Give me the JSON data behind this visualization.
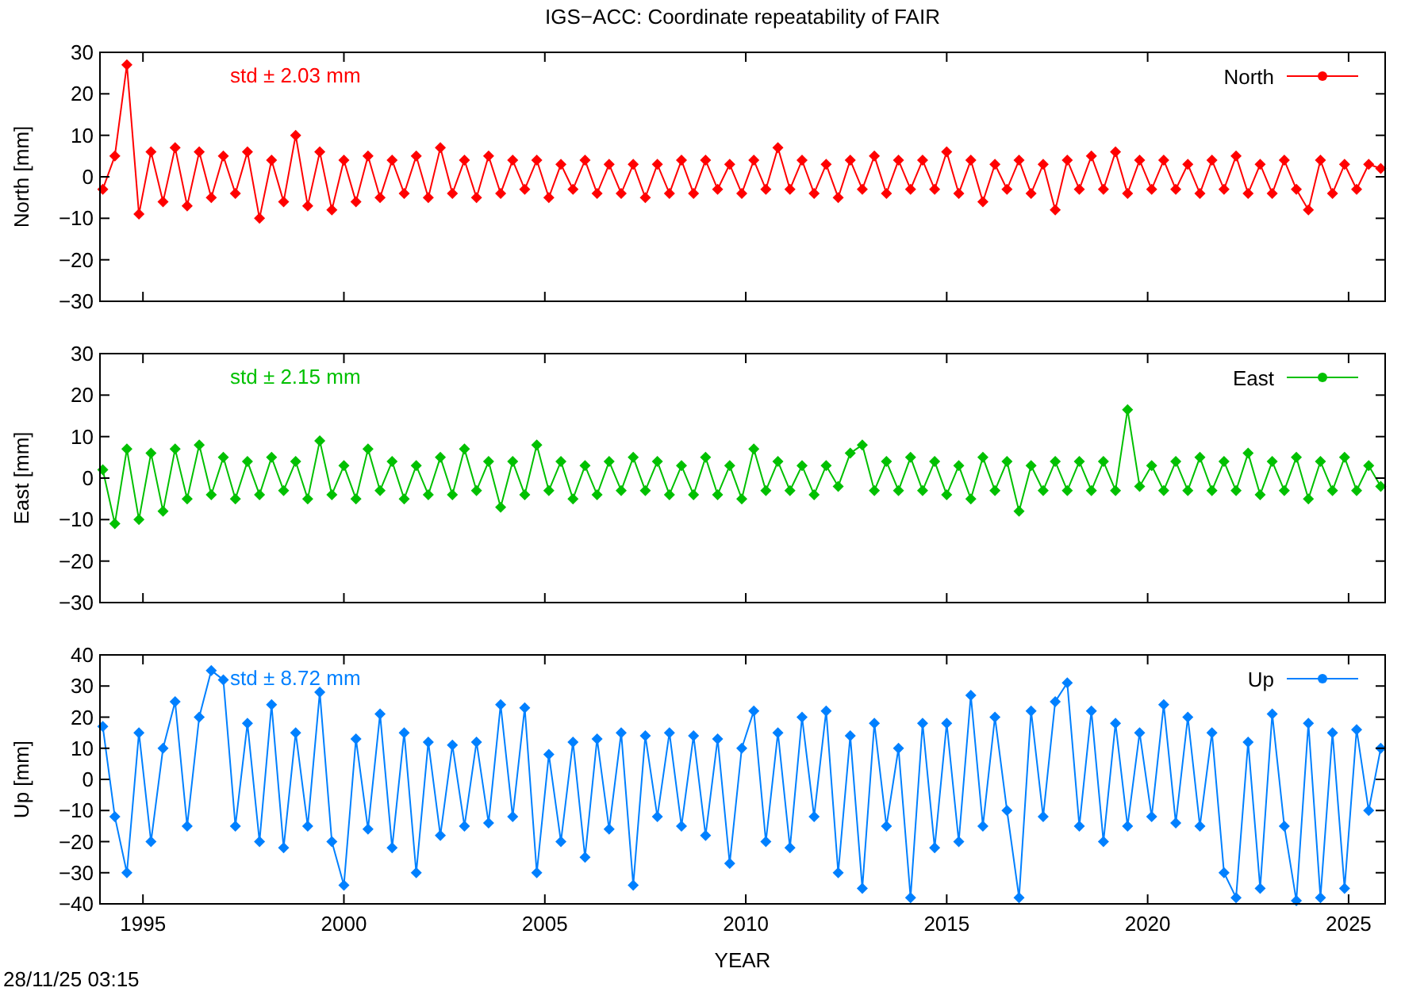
{
  "chart_data": [
    {
      "type": "line",
      "title": "IGS−ACC: Coordinate repeatability of FAIR",
      "ylabel": "North [mm]",
      "annotations": [
        "std ± 2.03 mm"
      ],
      "marker": "diamond",
      "legend": "top right",
      "tick_labels": "y",
      "grid": false,
      "xlim": [
        1993.93,
        2025.91
      ],
      "xticks": [
        1995,
        2000,
        2005,
        2010,
        2015,
        2020,
        2025
      ],
      "ylim": [
        -30,
        30
      ],
      "yticks": [
        -30,
        -20,
        -10,
        0,
        10,
        20,
        30
      ],
      "x": [
        1994.0,
        1994.3,
        1994.6,
        1994.9,
        1995.2,
        1995.5,
        1995.8,
        1996.1,
        1996.4,
        1996.7,
        1997.0,
        1997.3,
        1997.6,
        1997.9,
        1998.2,
        1998.5,
        1998.8,
        1999.1,
        1999.4,
        1999.7,
        2000.0,
        2000.3,
        2000.6,
        2000.9,
        2001.2,
        2001.5,
        2001.8,
        2002.1,
        2002.4,
        2002.7,
        2003.0,
        2003.3,
        2003.6,
        2003.9,
        2004.2,
        2004.5,
        2004.8,
        2005.1,
        2005.4,
        2005.7,
        2006.0,
        2006.3,
        2006.6,
        2006.9,
        2007.2,
        2007.5,
        2007.8,
        2008.1,
        2008.4,
        2008.7,
        2009.0,
        2009.3,
        2009.6,
        2009.9,
        2010.2,
        2010.5,
        2010.8,
        2011.1,
        2011.4,
        2011.7,
        2012.0,
        2012.3,
        2012.6,
        2012.9,
        2013.2,
        2013.5,
        2013.8,
        2014.1,
        2014.4,
        2014.7,
        2015.0,
        2015.3,
        2015.6,
        2015.9,
        2016.2,
        2016.5,
        2016.8,
        2017.1,
        2017.4,
        2017.7,
        2018.0,
        2018.3,
        2018.6,
        2018.9,
        2019.2,
        2019.5,
        2019.8,
        2020.1,
        2020.4,
        2020.7,
        2021.0,
        2021.3,
        2021.6,
        2021.9,
        2022.2,
        2022.5,
        2022.8,
        2023.1,
        2023.4,
        2023.7,
        2024.0,
        2024.3,
        2024.6,
        2024.9,
        2025.2,
        2025.5,
        2025.8
      ],
      "series": [
        {
          "name": "North",
          "color": "#ff0000",
          "values": [
            -3,
            5,
            27,
            -9,
            6,
            -6,
            7,
            -7,
            6,
            -5,
            5,
            -4,
            6,
            -10,
            4,
            -6,
            10,
            -7,
            6,
            -8,
            4,
            -6,
            5,
            -5,
            4,
            -4,
            5,
            -5,
            7,
            -4,
            4,
            -5,
            5,
            -4,
            4,
            -3,
            4,
            -5,
            3,
            -3,
            4,
            -4,
            3,
            -4,
            3,
            -5,
            3,
            -4,
            4,
            -4,
            4,
            -3,
            3,
            -4,
            4,
            -3,
            7,
            -3,
            4,
            -4,
            3,
            -5,
            4,
            -3,
            5,
            -4,
            4,
            -3,
            4,
            -3,
            6,
            -4,
            4,
            -6,
            3,
            -3,
            4,
            -4,
            3,
            -8,
            4,
            -3,
            5,
            -3,
            6,
            -4,
            4,
            -3,
            4,
            -3,
            3,
            -4,
            4,
            -3,
            5,
            -4,
            3,
            -4,
            4,
            -3,
            -8,
            4,
            -4,
            3,
            -3,
            3,
            2
          ]
        }
      ]
    },
    {
      "type": "line",
      "ylabel": "East [mm]",
      "annotations": [
        "std ± 2.15 mm"
      ],
      "marker": "diamond",
      "legend": "top right",
      "tick_labels": "y",
      "grid": false,
      "xlim": [
        1993.93,
        2025.91
      ],
      "xticks": [
        1995,
        2000,
        2005,
        2010,
        2015,
        2020,
        2025
      ],
      "ylim": [
        -30,
        30
      ],
      "yticks": [
        -30,
        -20,
        -10,
        0,
        10,
        20,
        30
      ],
      "x": [
        1994.0,
        1994.3,
        1994.6,
        1994.9,
        1995.2,
        1995.5,
        1995.8,
        1996.1,
        1996.4,
        1996.7,
        1997.0,
        1997.3,
        1997.6,
        1997.9,
        1998.2,
        1998.5,
        1998.8,
        1999.1,
        1999.4,
        1999.7,
        2000.0,
        2000.3,
        2000.6,
        2000.9,
        2001.2,
        2001.5,
        2001.8,
        2002.1,
        2002.4,
        2002.7,
        2003.0,
        2003.3,
        2003.6,
        2003.9,
        2004.2,
        2004.5,
        2004.8,
        2005.1,
        2005.4,
        2005.7,
        2006.0,
        2006.3,
        2006.6,
        2006.9,
        2007.2,
        2007.5,
        2007.8,
        2008.1,
        2008.4,
        2008.7,
        2009.0,
        2009.3,
        2009.6,
        2009.9,
        2010.2,
        2010.5,
        2010.8,
        2011.1,
        2011.4,
        2011.7,
        2012.0,
        2012.3,
        2012.6,
        2012.9,
        2013.2,
        2013.5,
        2013.8,
        2014.1,
        2014.4,
        2014.7,
        2015.0,
        2015.3,
        2015.6,
        2015.9,
        2016.2,
        2016.5,
        2016.8,
        2017.1,
        2017.4,
        2017.7,
        2018.0,
        2018.3,
        2018.6,
        2018.9,
        2019.2,
        2019.5,
        2019.8,
        2020.1,
        2020.4,
        2020.7,
        2021.0,
        2021.3,
        2021.6,
        2021.9,
        2022.2,
        2022.5,
        2022.8,
        2023.1,
        2023.4,
        2023.7,
        2024.0,
        2024.3,
        2024.6,
        2024.9,
        2025.2,
        2025.5,
        2025.8
      ],
      "series": [
        {
          "name": "East",
          "color": "#00c000",
          "values": [
            2,
            -11,
            7,
            -10,
            6,
            -8,
            7,
            -5,
            8,
            -4,
            5,
            -5,
            4,
            -4,
            5,
            -3,
            4,
            -5,
            9,
            -4,
            3,
            -5,
            7,
            -3,
            4,
            -5,
            3,
            -4,
            5,
            -4,
            7,
            -3,
            4,
            -7,
            4,
            -4,
            8,
            -3,
            4,
            -5,
            3,
            -4,
            4,
            -3,
            5,
            -3,
            4,
            -4,
            3,
            -4,
            5,
            -4,
            3,
            -5,
            7,
            -3,
            4,
            -3,
            3,
            -4,
            3,
            -2,
            6,
            8,
            -3,
            4,
            -3,
            5,
            -3,
            4,
            -4,
            3,
            -5,
            5,
            -3,
            4,
            -8,
            3,
            -3,
            4,
            -3,
            4,
            -3,
            4,
            -3,
            16.5,
            -2,
            3,
            -3,
            4,
            -3,
            5,
            -3,
            4,
            -3,
            6,
            -4,
            4,
            -3,
            5,
            -5,
            4,
            -3,
            5,
            -3,
            3,
            -2
          ]
        }
      ]
    },
    {
      "type": "line",
      "xlabel": "YEAR",
      "ylabel": "Up [mm]",
      "annotations": [
        "std ± 8.72 mm",
        "28/11/25 03:15"
      ],
      "marker": "diamond",
      "legend": "top right",
      "grid": false,
      "xlim": [
        1993.93,
        2025.91
      ],
      "xticks": [
        1995,
        2000,
        2005,
        2010,
        2015,
        2020,
        2025
      ],
      "ylim": [
        -40,
        40
      ],
      "yticks": [
        -40,
        -30,
        -20,
        -10,
        0,
        10,
        20,
        30,
        40
      ],
      "x": [
        1994.0,
        1994.3,
        1994.6,
        1994.9,
        1995.2,
        1995.5,
        1995.8,
        1996.1,
        1996.4,
        1996.7,
        1997.0,
        1997.3,
        1997.6,
        1997.9,
        1998.2,
        1998.5,
        1998.8,
        1999.1,
        1999.4,
        1999.7,
        2000.0,
        2000.3,
        2000.6,
        2000.9,
        2001.2,
        2001.5,
        2001.8,
        2002.1,
        2002.4,
        2002.7,
        2003.0,
        2003.3,
        2003.6,
        2003.9,
        2004.2,
        2004.5,
        2004.8,
        2005.1,
        2005.4,
        2005.7,
        2006.0,
        2006.3,
        2006.6,
        2006.9,
        2007.2,
        2007.5,
        2007.8,
        2008.1,
        2008.4,
        2008.7,
        2009.0,
        2009.3,
        2009.6,
        2009.9,
        2010.2,
        2010.5,
        2010.8,
        2011.1,
        2011.4,
        2011.7,
        2012.0,
        2012.3,
        2012.6,
        2012.9,
        2013.2,
        2013.5,
        2013.8,
        2014.1,
        2014.4,
        2014.7,
        2015.0,
        2015.3,
        2015.6,
        2015.9,
        2016.2,
        2016.5,
        2016.8,
        2017.1,
        2017.4,
        2017.7,
        2018.0,
        2018.3,
        2018.6,
        2018.9,
        2019.2,
        2019.5,
        2019.8,
        2020.1,
        2020.4,
        2020.7,
        2021.0,
        2021.3,
        2021.6,
        2021.9,
        2022.2,
        2022.5,
        2022.8,
        2023.1,
        2023.4,
        2023.7,
        2024.0,
        2024.3,
        2024.6,
        2024.9,
        2025.2,
        2025.5,
        2025.8
      ],
      "series": [
        {
          "name": "Up",
          "color": "#0080ff",
          "values": [
            17,
            -12,
            -30,
            15,
            -20,
            10,
            25,
            -15,
            20,
            35,
            32,
            -15,
            18,
            -20,
            24,
            -22,
            15,
            -15,
            28,
            -20,
            -34,
            13,
            -16,
            21,
            -22,
            15,
            -30,
            12,
            -18,
            11,
            -15,
            12,
            -14,
            24,
            -12,
            23,
            -30,
            8,
            -20,
            12,
            -25,
            13,
            -16,
            15,
            -34,
            14,
            -12,
            15,
            -15,
            14,
            -18,
            13,
            -27,
            10,
            22,
            -20,
            15,
            -22,
            20,
            -12,
            22,
            -30,
            14,
            -35,
            18,
            -15,
            10,
            -38,
            18,
            -22,
            18,
            -20,
            27,
            -15,
            20,
            -10,
            -38,
            22,
            -12,
            25,
            31,
            -15,
            22,
            -20,
            18,
            -15,
            15,
            -12,
            24,
            -14,
            20,
            -15,
            15,
            -30,
            -38,
            12,
            -35,
            21,
            -15,
            -39,
            18,
            -38,
            15,
            -35,
            16,
            -10,
            10
          ]
        }
      ]
    }
  ]
}
